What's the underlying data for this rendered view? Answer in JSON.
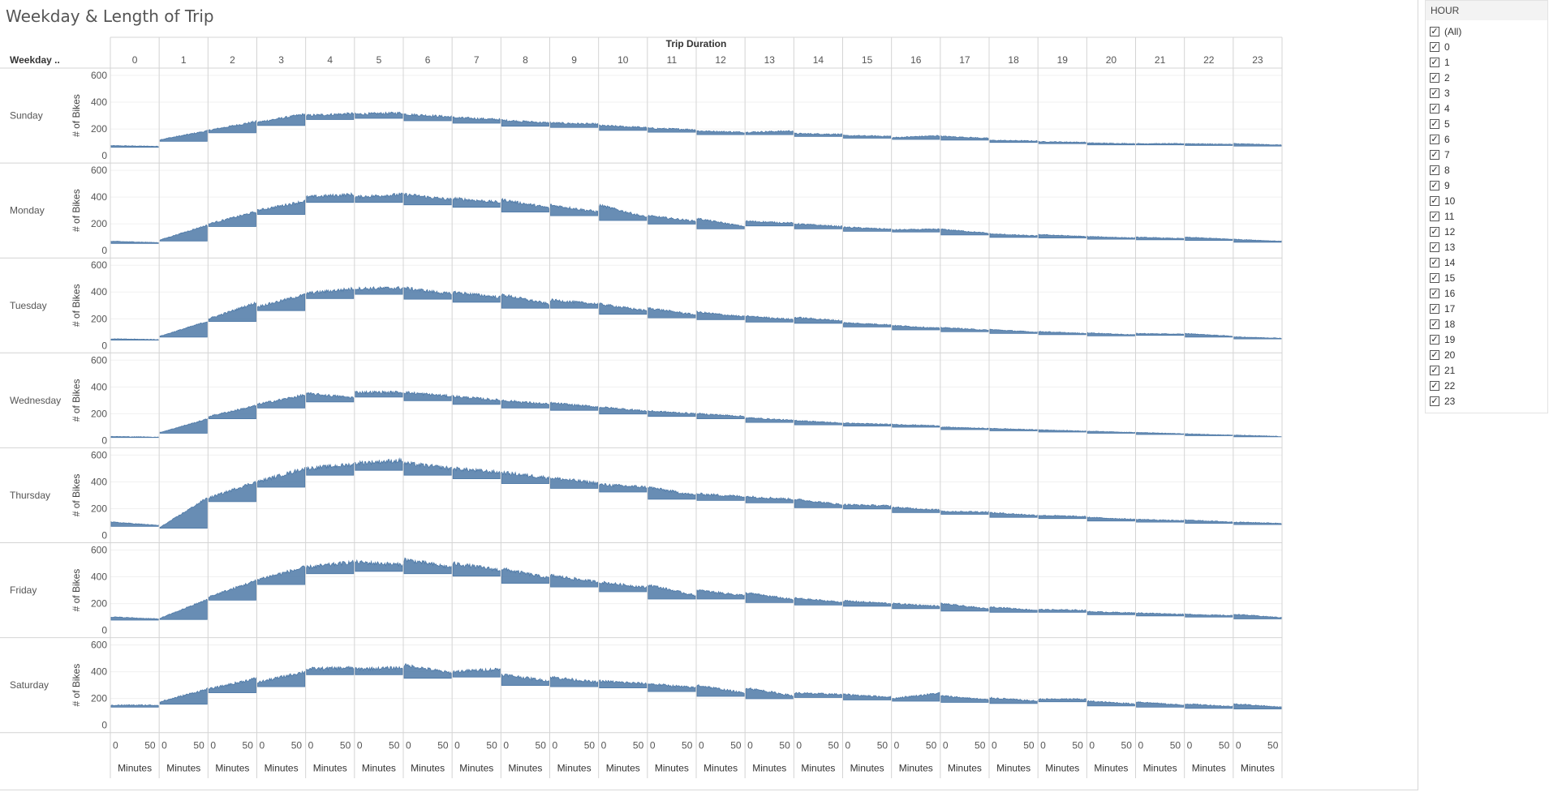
{
  "dashboard": {
    "title": "Weekday & Length of Trip"
  },
  "filter": {
    "title": "HOUR",
    "items": [
      {
        "label": "(All)",
        "checked": true
      },
      {
        "label": "0",
        "checked": true
      },
      {
        "label": "1",
        "checked": true
      },
      {
        "label": "2",
        "checked": true
      },
      {
        "label": "3",
        "checked": true
      },
      {
        "label": "4",
        "checked": true
      },
      {
        "label": "5",
        "checked": true
      },
      {
        "label": "6",
        "checked": true
      },
      {
        "label": "7",
        "checked": true
      },
      {
        "label": "8",
        "checked": true
      },
      {
        "label": "9",
        "checked": true
      },
      {
        "label": "10",
        "checked": true
      },
      {
        "label": "11",
        "checked": true
      },
      {
        "label": "12",
        "checked": true
      },
      {
        "label": "13",
        "checked": true
      },
      {
        "label": "14",
        "checked": true
      },
      {
        "label": "15",
        "checked": true
      },
      {
        "label": "16",
        "checked": true
      },
      {
        "label": "17",
        "checked": true
      },
      {
        "label": "18",
        "checked": true
      },
      {
        "label": "19",
        "checked": true
      },
      {
        "label": "20",
        "checked": true
      },
      {
        "label": "21",
        "checked": true
      },
      {
        "label": "22",
        "checked": true
      },
      {
        "label": "23",
        "checked": true
      }
    ]
  },
  "chart_data": {
    "type": "area",
    "title": "Weekday & Length of Trip",
    "column_header_title": "Trip Duration",
    "row_header_title": "Weekday ..",
    "ylabel": "# of Bikes",
    "xlabel": "Minutes",
    "ylim": [
      0,
      600
    ],
    "yticks": [
      0,
      200,
      400,
      600
    ],
    "xticks": [
      0,
      50
    ],
    "xlim": [
      0,
      59
    ],
    "columns": [
      0,
      1,
      2,
      3,
      4,
      5,
      6,
      7,
      8,
      9,
      10,
      11,
      12,
      13,
      14,
      15,
      16,
      17,
      18,
      19,
      20,
      21,
      22,
      23
    ],
    "color": "#4e79a7",
    "series": [
      {
        "name": "Sunday",
        "start": [
          75,
          120,
          190,
          250,
          300,
          310,
          310,
          285,
          265,
          245,
          225,
          205,
          185,
          175,
          165,
          150,
          135,
          145,
          115,
          105,
          95,
          90,
          90,
          90
        ],
        "end": [
          70,
          185,
          255,
          310,
          315,
          320,
          290,
          270,
          245,
          235,
          210,
          195,
          175,
          185,
          160,
          145,
          150,
          130,
          110,
          100,
          90,
          90,
          85,
          80
        ]
      },
      {
        "name": "Monday",
        "start": [
          70,
          80,
          200,
          300,
          400,
          400,
          420,
          390,
          380,
          340,
          340,
          260,
          240,
          220,
          200,
          175,
          155,
          160,
          125,
          120,
          105,
          100,
          100,
          85
        ],
        "end": [
          60,
          190,
          290,
          370,
          420,
          420,
          380,
          360,
          320,
          290,
          250,
          220,
          180,
          205,
          180,
          160,
          160,
          130,
          110,
          105,
          95,
          90,
          85,
          70
        ]
      },
      {
        "name": "Tuesday",
        "start": [
          50,
          70,
          200,
          290,
          390,
          425,
          430,
          400,
          380,
          340,
          310,
          280,
          250,
          220,
          210,
          170,
          150,
          135,
          120,
          105,
          95,
          90,
          90,
          65
        ],
        "end": [
          45,
          180,
          320,
          380,
          425,
          430,
          385,
          360,
          310,
          310,
          260,
          230,
          215,
          195,
          185,
          155,
          130,
          115,
          100,
          90,
          80,
          85,
          70,
          55
        ]
      },
      {
        "name": "Wednesday",
        "start": [
          30,
          60,
          180,
          270,
          350,
          360,
          360,
          330,
          300,
          280,
          250,
          220,
          200,
          170,
          150,
          130,
          120,
          100,
          90,
          80,
          70,
          60,
          50,
          40
        ],
        "end": [
          25,
          160,
          260,
          340,
          320,
          360,
          330,
          300,
          270,
          250,
          220,
          200,
          180,
          150,
          130,
          120,
          110,
          90,
          80,
          70,
          60,
          50,
          40,
          30
        ]
      },
      {
        "name": "Thursday",
        "start": [
          100,
          60,
          280,
          400,
          500,
          540,
          540,
          500,
          470,
          430,
          380,
          360,
          310,
          290,
          270,
          230,
          210,
          180,
          170,
          150,
          135,
          120,
          115,
          100
        ],
        "end": [
          75,
          280,
          400,
          500,
          530,
          560,
          500,
          470,
          430,
          390,
          360,
          300,
          290,
          270,
          230,
          220,
          190,
          175,
          150,
          140,
          120,
          110,
          100,
          90
        ]
      },
      {
        "name": "Friday",
        "start": [
          100,
          90,
          250,
          380,
          470,
          510,
          530,
          500,
          460,
          410,
          360,
          340,
          300,
          280,
          240,
          220,
          200,
          200,
          175,
          155,
          140,
          130,
          120,
          120
        ],
        "end": [
          85,
          230,
          370,
          470,
          510,
          490,
          470,
          450,
          390,
          360,
          320,
          260,
          260,
          230,
          210,
          200,
          180,
          160,
          150,
          150,
          130,
          120,
          110,
          95
        ]
      },
      {
        "name": "Saturday",
        "start": [
          150,
          175,
          270,
          320,
          420,
          420,
          450,
          400,
          380,
          360,
          330,
          310,
          300,
          280,
          240,
          230,
          200,
          220,
          205,
          195,
          180,
          175,
          160,
          160
        ],
        "end": [
          150,
          270,
          350,
          400,
          430,
          430,
          390,
          420,
          330,
          320,
          310,
          280,
          240,
          220,
          230,
          210,
          240,
          190,
          180,
          195,
          160,
          150,
          140,
          135
        ]
      }
    ]
  }
}
